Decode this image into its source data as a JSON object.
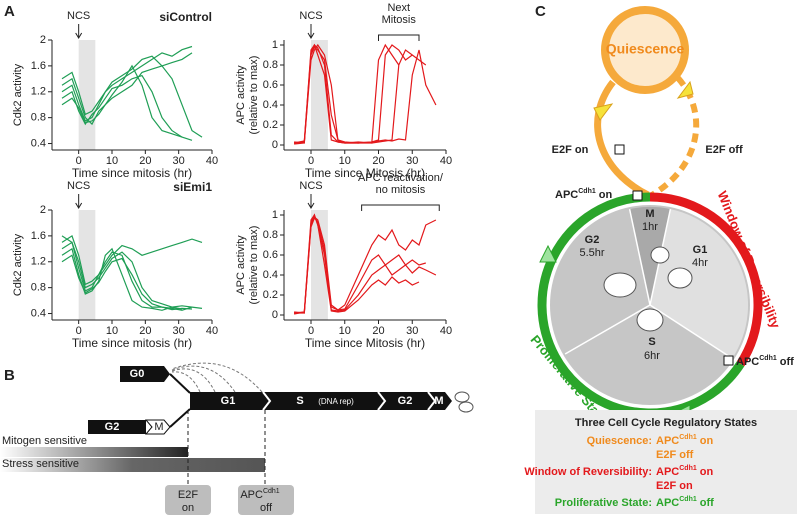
{
  "panel_labels": [
    "A",
    "B",
    "C"
  ],
  "chart_data": [
    {
      "type": "line",
      "subtitle": "siControl",
      "xlabel": "Time since mitosis (hr)",
      "ylabel": [
        "Cdk2 activity"
      ],
      "xlim": [
        -8,
        40
      ],
      "ylim": [
        0.3,
        2
      ],
      "xticks": [
        0,
        10,
        20,
        30,
        40
      ],
      "yticks": [
        0.4,
        0.8,
        1.2,
        1.6,
        2
      ],
      "shade": [
        0,
        5
      ],
      "arrow": {
        "text": "NCS",
        "x": 0
      },
      "x": [
        -5,
        -2,
        0,
        2,
        4,
        6,
        8,
        10,
        13,
        16,
        19,
        22,
        25,
        28,
        31,
        34,
        37
      ],
      "series": [
        {
          "color": "#1f9e55",
          "values": [
            1.2,
            1.3,
            1.0,
            0.75,
            0.8,
            1.0,
            1.2,
            1.3,
            1.4,
            1.5,
            1.6,
            1.7,
            1.8,
            1.75,
            1.85,
            1.9,
            null
          ]
        },
        {
          "color": "#1f9e55",
          "values": [
            1.1,
            1.2,
            0.9,
            0.7,
            0.85,
            0.95,
            1.1,
            1.25,
            1.3,
            1.4,
            1.45,
            1.2,
            0.8,
            0.6,
            0.5,
            0.45,
            null
          ]
        },
        {
          "color": "#1f9e55",
          "values": [
            1.3,
            1.4,
            1.1,
            0.8,
            0.7,
            0.9,
            1.0,
            1.1,
            1.2,
            1.3,
            1.5,
            1.55,
            1.6,
            1.4,
            1.0,
            0.6,
            0.5
          ]
        },
        {
          "color": "#1f9e55",
          "values": [
            1.0,
            1.1,
            0.95,
            0.72,
            0.75,
            0.85,
            1.0,
            1.15,
            1.35,
            1.6,
            1.3,
            0.8,
            0.6,
            0.55,
            0.5,
            null,
            null
          ]
        },
        {
          "color": "#1f9e55",
          "values": [
            1.4,
            1.5,
            1.2,
            0.85,
            0.9,
            1.05,
            1.2,
            1.35,
            1.45,
            1.55,
            1.7,
            1.75,
            1.6,
            1.65,
            1.7,
            1.8,
            null
          ]
        }
      ]
    },
    {
      "type": "line",
      "xlabel": "Time since Mitosis (hr)",
      "ylabel": [
        "APC activity",
        "(relative to max)"
      ],
      "xlim": [
        -8,
        40
      ],
      "ylim": [
        -0.05,
        1.05
      ],
      "xticks": [
        0,
        10,
        20,
        30,
        40
      ],
      "yticks": [
        0,
        0.2,
        0.4,
        0.6,
        0.8,
        1
      ],
      "shade": [
        0,
        5
      ],
      "arrow": {
        "text": "NCS",
        "x": 0
      },
      "bracket": {
        "text": [
          "Next",
          "Mitosis"
        ],
        "from": 20,
        "to": 32
      },
      "x": [
        -5,
        -2,
        0,
        1,
        2,
        4,
        6,
        8,
        10,
        14,
        18,
        20,
        22,
        24,
        26,
        28,
        30,
        32,
        34,
        37
      ],
      "series": [
        {
          "color": "#e3191c",
          "values": [
            0.02,
            0.03,
            0.95,
            1.0,
            0.9,
            0.7,
            0.05,
            0.03,
            0.02,
            0.02,
            0.03,
            0.05,
            0.9,
            1.0,
            0.95,
            0.85,
            0.9,
            null,
            null,
            null
          ]
        },
        {
          "color": "#e3191c",
          "values": [
            0.01,
            0.02,
            0.9,
            0.98,
            0.95,
            0.85,
            0.3,
            0.05,
            0.03,
            0.02,
            0.02,
            0.03,
            0.04,
            0.05,
            0.8,
            0.95,
            0.9,
            0.85,
            0.8,
            null
          ]
        },
        {
          "color": "#e3191c",
          "values": [
            0.03,
            0.02,
            0.85,
            0.95,
            1.0,
            0.9,
            0.6,
            0.04,
            0.02,
            0.03,
            0.02,
            0.85,
            1.0,
            0.9,
            0.8,
            null,
            null,
            null,
            null,
            null
          ]
        },
        {
          "color": "#e3191c",
          "values": [
            0.02,
            0.04,
            0.92,
            1.0,
            0.97,
            0.8,
            0.1,
            0.03,
            0.02,
            0.02,
            0.03,
            0.04,
            0.05,
            0.04,
            0.06,
            0.05,
            0.7,
            0.95,
            0.6,
            0.4
          ]
        }
      ]
    },
    {
      "type": "line",
      "subtitle": "siEmi1",
      "xlabel": "Time since mitosis (hr)",
      "ylabel": [
        "Cdk2 activity"
      ],
      "xlim": [
        -8,
        40
      ],
      "ylim": [
        0.3,
        2
      ],
      "xticks": [
        0,
        10,
        20,
        30,
        40
      ],
      "yticks": [
        0.4,
        0.8,
        1.2,
        1.6,
        2
      ],
      "shade": [
        0,
        5
      ],
      "arrow": {
        "text": "NCS",
        "x": 0
      },
      "x": [
        -5,
        -2,
        0,
        2,
        4,
        6,
        8,
        10,
        13,
        16,
        19,
        22,
        25,
        28,
        31,
        34,
        37
      ],
      "series": [
        {
          "color": "#1f9e55",
          "values": [
            1.4,
            1.5,
            1.1,
            0.75,
            0.8,
            1.0,
            1.2,
            1.35,
            1.3,
            0.9,
            0.6,
            0.5,
            0.5,
            0.48,
            0.45,
            0.5,
            null
          ]
        },
        {
          "color": "#1f9e55",
          "values": [
            1.6,
            1.5,
            1.2,
            0.8,
            0.85,
            0.95,
            1.1,
            1.25,
            1.35,
            1.2,
            0.8,
            0.6,
            0.55,
            0.5,
            0.52,
            0.5,
            0.48
          ]
        },
        {
          "color": "#1f9e55",
          "values": [
            1.3,
            1.4,
            1.0,
            0.7,
            0.75,
            0.9,
            1.3,
            1.4,
            1.0,
            0.6,
            0.5,
            0.48,
            0.45,
            0.5,
            0.47,
            null,
            null
          ]
        },
        {
          "color": "#1f9e55",
          "values": [
            1.5,
            1.6,
            1.3,
            0.85,
            0.9,
            1.0,
            1.15,
            1.3,
            1.45,
            1.4,
            1.3,
            1.35,
            1.4,
            1.45,
            1.5,
            1.55,
            1.5
          ]
        },
        {
          "color": "#1f9e55",
          "values": [
            1.2,
            1.3,
            0.95,
            0.72,
            0.78,
            0.88,
            1.05,
            1.2,
            1.25,
            1.0,
            0.7,
            0.55,
            0.5,
            0.46,
            0.48,
            0.47,
            null
          ]
        }
      ]
    },
    {
      "type": "line",
      "xlabel": "Time since Mitosis (hr)",
      "ylabel": [
        "APC activity",
        "(relative to max)"
      ],
      "xlim": [
        -8,
        40
      ],
      "ylim": [
        -0.05,
        1.05
      ],
      "xticks": [
        0,
        10,
        20,
        30,
        40
      ],
      "yticks": [
        0,
        0.2,
        0.4,
        0.6,
        0.8,
        1
      ],
      "shade": [
        0,
        5
      ],
      "arrow": {
        "text": "NCS",
        "x": 0
      },
      "bracket": {
        "text": [
          "APC reactivation/",
          "no mitosis"
        ],
        "from": 15,
        "to": 38
      },
      "x": [
        -5,
        -2,
        0,
        1,
        2,
        4,
        6,
        8,
        10,
        14,
        18,
        20,
        22,
        24,
        26,
        28,
        30,
        32,
        34,
        37
      ],
      "series": [
        {
          "color": "#e3191c",
          "values": [
            0.02,
            0.03,
            0.95,
            1.0,
            0.9,
            0.6,
            0.05,
            0.04,
            0.05,
            0.2,
            0.4,
            0.45,
            0.5,
            0.4,
            0.45,
            0.5,
            0.42,
            0.48,
            0.45,
            0.4
          ]
        },
        {
          "color": "#e3191c",
          "values": [
            0.03,
            0.02,
            0.9,
            0.98,
            0.95,
            0.7,
            0.1,
            0.05,
            0.06,
            0.3,
            0.55,
            0.6,
            0.5,
            0.55,
            0.6,
            0.5,
            0.55,
            0.5,
            0.52,
            null
          ]
        },
        {
          "color": "#e3191c",
          "values": [
            0.01,
            0.03,
            0.92,
            1.0,
            0.9,
            0.5,
            0.04,
            0.03,
            0.04,
            0.15,
            0.3,
            0.35,
            0.3,
            0.38,
            0.32,
            0.35,
            0.3,
            0.33,
            null,
            null
          ]
        },
        {
          "color": "#e3191c",
          "values": [
            0.02,
            0.02,
            0.88,
            0.97,
            0.93,
            0.65,
            0.08,
            0.05,
            0.1,
            0.4,
            0.7,
            0.8,
            0.75,
            0.85,
            0.7,
            0.65,
            0.75,
            0.7,
            0.9,
            0.95
          ]
        }
      ]
    }
  ],
  "timeline": {
    "g0": "G0",
    "g2_prev": "G2",
    "m_prev": "M",
    "phases": [
      "G1",
      "S",
      "G2",
      "M"
    ],
    "s_note": "(DNA rep)",
    "mitogen": "Mitogen sensitive",
    "stress": "Stress sensitive",
    "e2f": [
      "E2F",
      "on"
    ],
    "apc": {
      "base": "APC",
      "sup": "Cdh1",
      "state": "off"
    }
  },
  "cycle": {
    "quiescence": "Quiescence",
    "e2f_on": "E2F on",
    "e2f_off": "E2F off",
    "apc_on": {
      "base": "APC",
      "sup": "Cdh1",
      "state": "on"
    },
    "apc_off": {
      "base": "APC",
      "sup": "Cdh1",
      "state": "off"
    },
    "window": "Window of Reversibility",
    "proliferative": "Proliferative State",
    "phases": [
      {
        "name": "M",
        "duration": "1hr"
      },
      {
        "name": "G1",
        "duration": "4hr"
      },
      {
        "name": "S",
        "duration": "6hr"
      },
      {
        "name": "G2",
        "duration": "5.5hr"
      }
    ],
    "legend": {
      "title": "Three Cell Cycle Regulatory States",
      "rows": [
        {
          "label": "Quiescence:",
          "apc": {
            "base": "APC",
            "sup": "Cdh1",
            "state": "on"
          },
          "e2f": "E2F off"
        },
        {
          "label": "Window of Reversibility:",
          "apc": {
            "base": "APC",
            "sup": "Cdh1",
            "state": "on"
          },
          "e2f": "E2F on"
        },
        {
          "label": "Proliferative State:",
          "apc": {
            "base": "APC",
            "sup": "Cdh1",
            "state": "off"
          }
        }
      ]
    }
  }
}
